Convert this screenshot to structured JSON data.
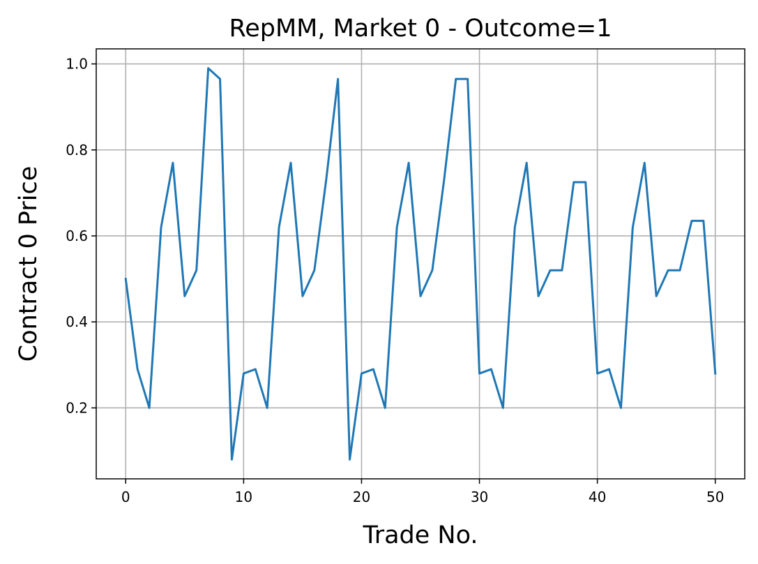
{
  "chart_data": {
    "type": "line",
    "title": "RepMM, Market 0 - Outcome=1",
    "xlabel": "Trade No.",
    "ylabel": "Contract 0 Price",
    "xlim": [
      -2.5,
      52.5
    ],
    "ylim": [
      0.035,
      1.035
    ],
    "xticks": [
      0,
      10,
      20,
      30,
      40,
      50
    ],
    "yticks": [
      0.2,
      0.4,
      0.6,
      0.8,
      1.0
    ],
    "xtick_labels": [
      "0",
      "10",
      "20",
      "30",
      "40",
      "50"
    ],
    "ytick_labels": [
      "0.2",
      "0.4",
      "0.6",
      "0.8",
      "1.0"
    ],
    "grid": true,
    "series": [
      {
        "color": "#1f77b4",
        "x": [
          0,
          1,
          2,
          3,
          4,
          5,
          6,
          7,
          8,
          9,
          10,
          11,
          12,
          13,
          14,
          15,
          16,
          17,
          18,
          19,
          20,
          21,
          22,
          23,
          24,
          25,
          26,
          27,
          28,
          29,
          30,
          31,
          32,
          33,
          34,
          35,
          36,
          37,
          38,
          39,
          40,
          41,
          42,
          43,
          44,
          45,
          46,
          47,
          48,
          49,
          50
        ],
        "values": [
          0.5,
          0.29,
          0.2,
          0.62,
          0.77,
          0.46,
          0.52,
          0.99,
          0.965,
          0.08,
          0.28,
          0.29,
          0.2,
          0.62,
          0.77,
          0.46,
          0.52,
          0.73,
          0.965,
          0.08,
          0.28,
          0.29,
          0.2,
          0.62,
          0.77,
          0.46,
          0.52,
          0.73,
          0.965,
          0.965,
          0.28,
          0.29,
          0.2,
          0.62,
          0.77,
          0.46,
          0.52,
          0.52,
          0.725,
          0.725,
          0.28,
          0.29,
          0.2,
          0.62,
          0.77,
          0.46,
          0.52,
          0.52,
          0.635,
          0.635,
          0.28
        ]
      }
    ]
  }
}
